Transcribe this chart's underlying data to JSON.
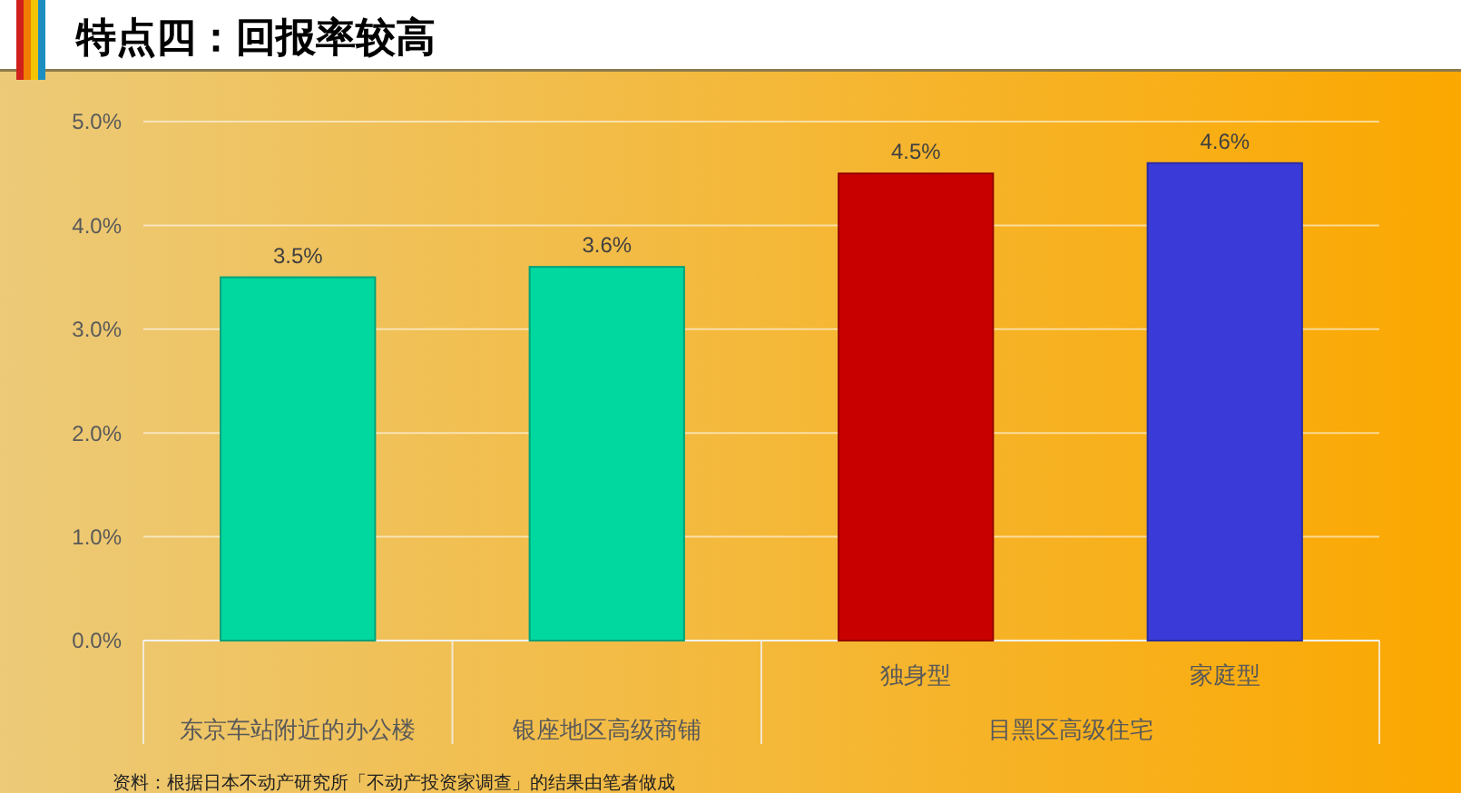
{
  "chart_data": {
    "type": "bar",
    "title": "特点四：回报率较高",
    "categories": [
      "东京车站附近的办公楼",
      "银座地区高级商铺",
      "独身型",
      "家庭型"
    ],
    "values": [
      3.5,
      3.6,
      4.5,
      4.6
    ],
    "colors": [
      "#00d8a0",
      "#00d8a0",
      "#c80000",
      "#3a3ad8"
    ],
    "value_labels": [
      "3.5%",
      "3.6%",
      "4.5%",
      "4.6%"
    ],
    "ylim": [
      0,
      5
    ],
    "yticks": [
      {
        "value": 0,
        "label": "0.0%"
      },
      {
        "value": 1,
        "label": "1.0%"
      },
      {
        "value": 2,
        "label": "2.0%"
      },
      {
        "value": 3,
        "label": "3.0%"
      },
      {
        "value": 4,
        "label": "4.0%"
      },
      {
        "value": 5,
        "label": "5.0%"
      }
    ],
    "grid": "y",
    "annotations": [
      "目黑区高级住宅",
      "资料：根据日本不动产研究所「不动产投资家调查」的结果由笔者做成"
    ]
  }
}
